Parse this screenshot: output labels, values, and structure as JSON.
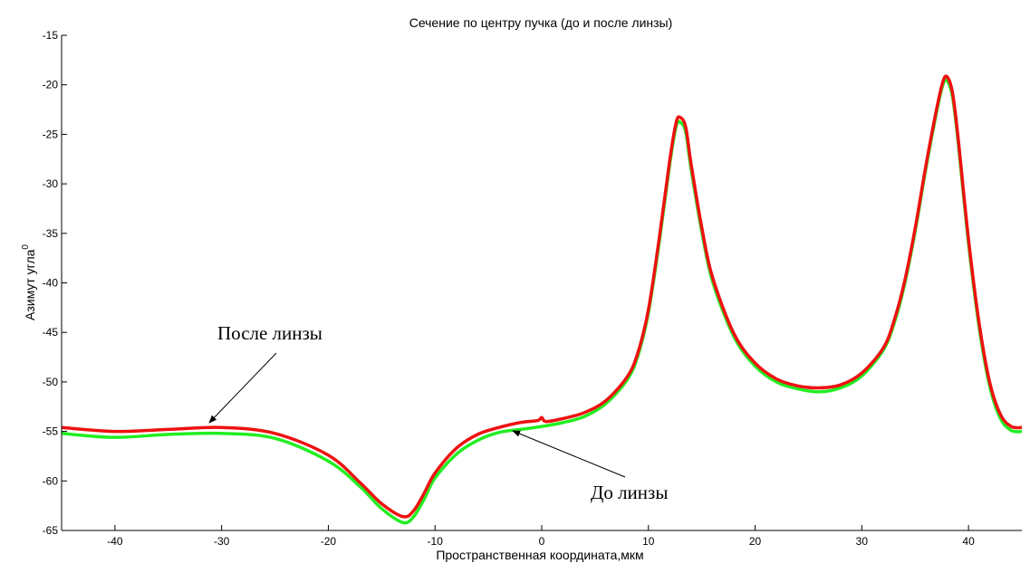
{
  "chart_data": {
    "type": "line",
    "title": "Сечение по центру пучка (до и после линзы)",
    "xlabel": "Пространственная координата,мкм",
    "ylabel": "Азимут угла",
    "ylabel_superscript": "0",
    "xlim": [
      -45,
      45
    ],
    "ylim": [
      -65,
      -15
    ],
    "xticks": [
      -40,
      -30,
      -20,
      -10,
      0,
      10,
      20,
      30,
      40
    ],
    "yticks": [
      -15,
      -20,
      -25,
      -30,
      -35,
      -40,
      -45,
      -50,
      -55,
      -60,
      -65
    ],
    "grid": false,
    "series": [
      {
        "name": "До линзы",
        "color": "#22ee22",
        "x": [
          -45,
          -40,
          -35,
          -30,
          -25,
          -20,
          -17,
          -15,
          -13,
          -12,
          -11,
          -10,
          -8,
          -6,
          -4,
          -2,
          0,
          2,
          4,
          6,
          8,
          9,
          10,
          11,
          12,
          12.6,
          13,
          13.5,
          14,
          15,
          16,
          18,
          20,
          22,
          24,
          26,
          28,
          30,
          32,
          33,
          34,
          35,
          36,
          37,
          37.6,
          38,
          38.5,
          39,
          40,
          41,
          42,
          43,
          44,
          45
        ],
        "y": [
          -55.2,
          -55.6,
          -55.3,
          -55.2,
          -55.7,
          -58.0,
          -60.6,
          -62.8,
          -64.2,
          -63.6,
          -61.8,
          -59.7,
          -57.3,
          -55.9,
          -55.1,
          -54.8,
          -54.5,
          -54.1,
          -53.5,
          -52.2,
          -49.8,
          -47.4,
          -43.0,
          -36.0,
          -28.0,
          -24.2,
          -23.8,
          -24.8,
          -28.5,
          -34.8,
          -39.8,
          -45.4,
          -48.4,
          -50.0,
          -50.7,
          -51.0,
          -50.6,
          -49.4,
          -46.8,
          -44.2,
          -40.2,
          -34.8,
          -28.5,
          -22.8,
          -20.0,
          -19.6,
          -21.2,
          -25.5,
          -36.0,
          -44.5,
          -50.5,
          -53.7,
          -54.9,
          -55.0
        ]
      },
      {
        "name": "После линзы",
        "color": "#ee1111",
        "x": [
          -45,
          -40,
          -35,
          -30,
          -25,
          -20,
          -17,
          -15,
          -13,
          -12,
          -11,
          -10,
          -8,
          -6,
          -4,
          -2,
          -0.4,
          0,
          0.4,
          2,
          4,
          6,
          8,
          9,
          10,
          11,
          12,
          12.6,
          13,
          13.5,
          14,
          15,
          16,
          18,
          20,
          22,
          24,
          26,
          28,
          30,
          32,
          33,
          34,
          35,
          36,
          37,
          37.6,
          38,
          38.5,
          39,
          40,
          41,
          42,
          43,
          44,
          45
        ],
        "y": [
          -54.6,
          -55.0,
          -54.8,
          -54.6,
          -55.2,
          -57.4,
          -60.2,
          -62.3,
          -63.6,
          -63.0,
          -61.2,
          -59.2,
          -56.7,
          -55.3,
          -54.6,
          -54.1,
          -53.9,
          -53.6,
          -54.0,
          -53.7,
          -53.1,
          -51.9,
          -49.5,
          -47.1,
          -42.7,
          -35.6,
          -27.6,
          -23.8,
          -23.3,
          -24.3,
          -28.0,
          -34.4,
          -39.4,
          -45.1,
          -48.1,
          -49.7,
          -50.4,
          -50.6,
          -50.3,
          -49.1,
          -46.6,
          -43.9,
          -39.9,
          -34.5,
          -28.2,
          -22.5,
          -19.7,
          -19.2,
          -20.8,
          -25.1,
          -35.6,
          -44.1,
          -50.1,
          -53.3,
          -54.5,
          -54.6
        ]
      }
    ],
    "annotations": [
      {
        "text": "После линзы",
        "points_to": {
          "series": "После линзы",
          "x": -31,
          "y": -54.6
        }
      },
      {
        "text": "До линзы",
        "points_to": {
          "series": "До линзы",
          "x": -3,
          "y": -54.9
        }
      }
    ]
  }
}
